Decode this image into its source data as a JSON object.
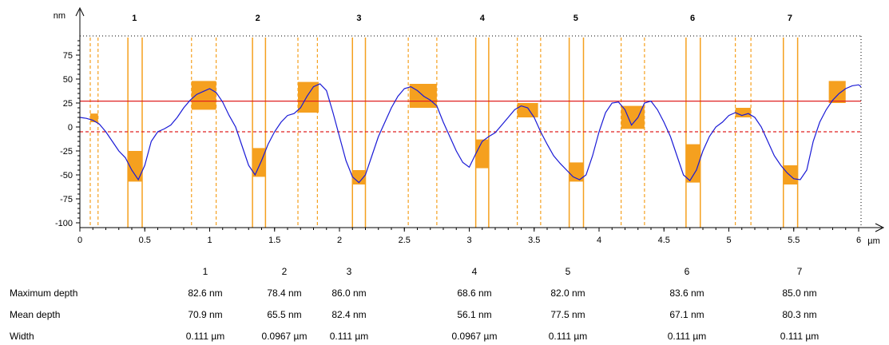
{
  "chart_data": {
    "type": "line",
    "title": "",
    "xlabel": "",
    "ylabel": "",
    "x_unit": "µm",
    "y_unit": "nm",
    "xlim": [
      0,
      6
    ],
    "ylim": [
      -105,
      95
    ],
    "x_ticks": [
      0,
      0.5,
      1,
      1.5,
      2,
      2.5,
      3,
      3.5,
      4,
      4.5,
      5,
      5.5,
      6
    ],
    "x_tick_labels": [
      "0",
      "0.5",
      "1",
      "1.5",
      "2",
      "2.5",
      "3",
      "3.5",
      "4",
      "4.5",
      "5",
      "5.5",
      "6"
    ],
    "y_ticks": [
      75,
      50,
      25,
      0,
      -25,
      -50,
      -75,
      -100
    ],
    "y_tick_labels": [
      "75",
      "50",
      "25",
      "0",
      "-25",
      "-50",
      "-75",
      "-100"
    ],
    "grid": false,
    "reference_lines": [
      {
        "style": "solid",
        "color": "#e02020",
        "y": 27
      },
      {
        "style": "dashed",
        "color": "#e02020",
        "y": -5
      }
    ],
    "series": [
      {
        "color": "#1a1ad6",
        "x": [
          0,
          0.05,
          0.1,
          0.15,
          0.2,
          0.25,
          0.3,
          0.35,
          0.4,
          0.45,
          0.5,
          0.55,
          0.6,
          0.65,
          0.7,
          0.75,
          0.8,
          0.85,
          0.9,
          0.95,
          1.0,
          1.05,
          1.1,
          1.15,
          1.2,
          1.25,
          1.3,
          1.35,
          1.4,
          1.45,
          1.5,
          1.55,
          1.6,
          1.65,
          1.7,
          1.75,
          1.8,
          1.85,
          1.9,
          1.95,
          2.0,
          2.05,
          2.1,
          2.15,
          2.2,
          2.25,
          2.3,
          2.35,
          2.4,
          2.45,
          2.5,
          2.55,
          2.6,
          2.65,
          2.7,
          2.75,
          2.8,
          2.85,
          2.9,
          2.95,
          3.0,
          3.05,
          3.1,
          3.15,
          3.2,
          3.25,
          3.3,
          3.35,
          3.4,
          3.45,
          3.5,
          3.55,
          3.6,
          3.65,
          3.7,
          3.75,
          3.8,
          3.85,
          3.9,
          3.95,
          4.0,
          4.05,
          4.1,
          4.15,
          4.2,
          4.25,
          4.3,
          4.35,
          4.4,
          4.45,
          4.5,
          4.55,
          4.6,
          4.65,
          4.7,
          4.75,
          4.8,
          4.85,
          4.9,
          4.95,
          5.0,
          5.05,
          5.1,
          5.15,
          5.2,
          5.25,
          5.3,
          5.35,
          5.4,
          5.45,
          5.5,
          5.55,
          5.6,
          5.65,
          5.7,
          5.75,
          5.8,
          5.85,
          5.9,
          5.95,
          6.0,
          6.05
        ],
        "y": [
          10,
          9,
          7,
          3,
          -5,
          -15,
          -25,
          -32,
          -45,
          -55,
          -40,
          -15,
          -5,
          -2,
          2,
          10,
          20,
          28,
          34,
          37,
          40,
          36,
          26,
          12,
          0,
          -20,
          -40,
          -50,
          -35,
          -18,
          -5,
          5,
          12,
          14,
          20,
          32,
          42,
          45,
          38,
          15,
          -10,
          -35,
          -52,
          -58,
          -50,
          -30,
          -10,
          5,
          20,
          32,
          40,
          42,
          38,
          32,
          28,
          22,
          5,
          -10,
          -25,
          -37,
          -42,
          -28,
          -15,
          -10,
          -6,
          2,
          10,
          18,
          22,
          20,
          10,
          -5,
          -18,
          -30,
          -38,
          -45,
          -52,
          -55,
          -50,
          -30,
          -5,
          15,
          25,
          26,
          18,
          2,
          10,
          25,
          27,
          18,
          5,
          -10,
          -30,
          -50,
          -56,
          -45,
          -25,
          -10,
          0,
          5,
          12,
          15,
          12,
          14,
          10,
          0,
          -15,
          -30,
          -40,
          -48,
          -54,
          -55,
          -45,
          -15,
          5,
          18,
          28,
          35,
          40,
          43,
          44,
          42
        ]
      }
    ],
    "markers": [
      {
        "label": "1",
        "x_center": 0.42,
        "x_inner": [
          0.37,
          0.48
        ],
        "x_outer": [
          0.08,
          0.14
        ],
        "box_y": [
          -25,
          -57
        ]
      },
      {
        "label": "2",
        "x_center": 1.37,
        "x_inner": [
          1.33,
          1.43
        ],
        "x_outer": [
          0.86,
          1.05
        ],
        "box_y": [
          -22,
          -52
        ]
      },
      {
        "label": "3",
        "x_center": 2.15,
        "x_inner": [
          2.1,
          2.2
        ],
        "x_outer": [
          1.68,
          1.83
        ],
        "box_y": [
          -45,
          -60
        ]
      },
      {
        "label": "4",
        "x_center": 3.1,
        "x_inner": [
          3.05,
          3.15
        ],
        "x_outer": [
          2.53,
          2.75
        ],
        "box_y": [
          -13,
          -43
        ]
      },
      {
        "label": "5",
        "x_center": 3.82,
        "x_inner": [
          3.77,
          3.88
        ],
        "x_outer": [
          3.37,
          3.55
        ],
        "box_y": [
          -37,
          -57
        ]
      },
      {
        "label": "6",
        "x_center": 4.72,
        "x_inner": [
          4.67,
          4.78
        ],
        "x_outer": [
          4.17,
          4.35
        ],
        "box_y": [
          -18,
          -58
        ]
      },
      {
        "label": "7",
        "x_center": 5.47,
        "x_inner": [
          5.42,
          5.53
        ],
        "x_outer": [
          5.05,
          5.17
        ],
        "box_y": [
          -40,
          -60
        ]
      }
    ],
    "peak_boxes": [
      {
        "x": [
          0.08,
          0.14
        ],
        "y": [
          14,
          5
        ]
      },
      {
        "x": [
          0.86,
          1.05
        ],
        "y": [
          48,
          18
        ]
      },
      {
        "x": [
          1.68,
          1.84
        ],
        "y": [
          47,
          15
        ]
      },
      {
        "x": [
          2.54,
          2.75
        ],
        "y": [
          45,
          20
        ]
      },
      {
        "x": [
          3.37,
          3.53
        ],
        "y": [
          25,
          10
        ]
      },
      {
        "x": [
          4.17,
          4.35
        ],
        "y": [
          22,
          -2
        ]
      },
      {
        "x": [
          5.05,
          5.17
        ],
        "y": [
          20,
          10
        ]
      },
      {
        "x": [
          5.77,
          5.9
        ],
        "y": [
          48,
          25
        ]
      }
    ]
  },
  "results": {
    "columns": [
      "1",
      "2",
      "3",
      "4",
      "5",
      "6",
      "7"
    ],
    "rows": [
      {
        "label": "Maximum depth",
        "values": [
          "82.6 nm",
          "78.4 nm",
          "86.0 nm",
          "68.6 nm",
          "82.0 nm",
          "83.6 nm",
          "85.0 nm"
        ]
      },
      {
        "label": "Mean depth",
        "values": [
          "70.9 nm",
          "65.5 nm",
          "82.4 nm",
          "56.1 nm",
          "77.5 nm",
          "67.1 nm",
          "80.3 nm"
        ]
      },
      {
        "label": "Width",
        "values": [
          "0.111 µm",
          "0.0967 µm",
          "0.111 µm",
          "0.0967 µm",
          "0.111 µm",
          "0.111 µm",
          "0.111 µm"
        ]
      }
    ]
  }
}
